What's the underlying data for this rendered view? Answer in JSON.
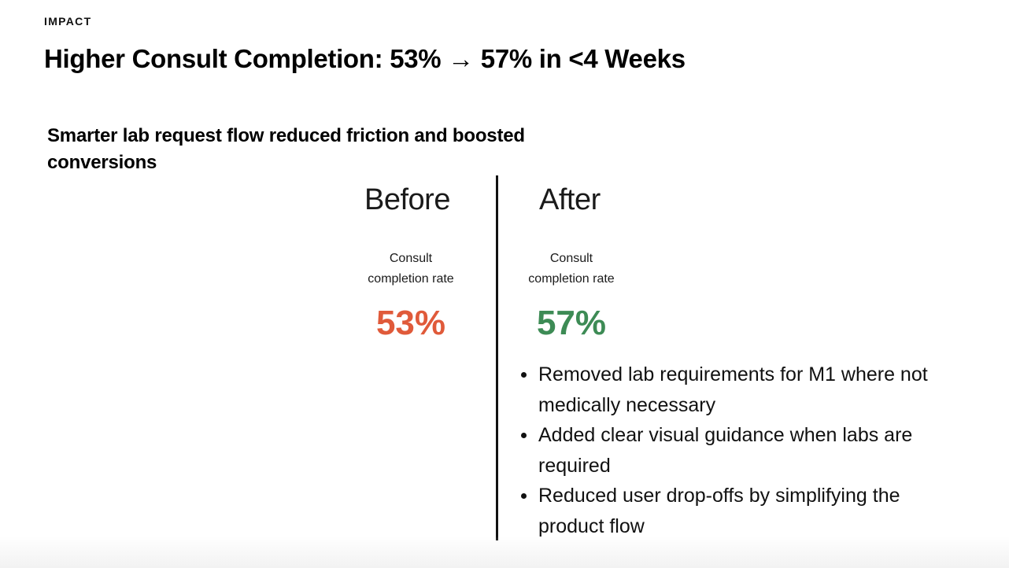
{
  "eyebrow": "IMPACT",
  "title": "Higher Consult Completion: 53% → 57% in <4 Weeks",
  "subtitle": "Smarter lab request flow reduced friction and boosted conversions",
  "before": {
    "heading": "Before",
    "metric_label_line1": "Consult",
    "metric_label_line2": "completion rate",
    "metric_value": "53%",
    "value_color": "#e05a3a"
  },
  "after": {
    "heading": "After",
    "metric_label_line1": "Consult",
    "metric_label_line2": "completion rate",
    "metric_value": "57%",
    "value_color": "#3d8b55",
    "bullets": [
      "Removed lab requirements for M1 where not medically necessary",
      "Added clear visual guidance when labs are required",
      "Reduced user drop-offs by simplifying the product flow"
    ]
  }
}
